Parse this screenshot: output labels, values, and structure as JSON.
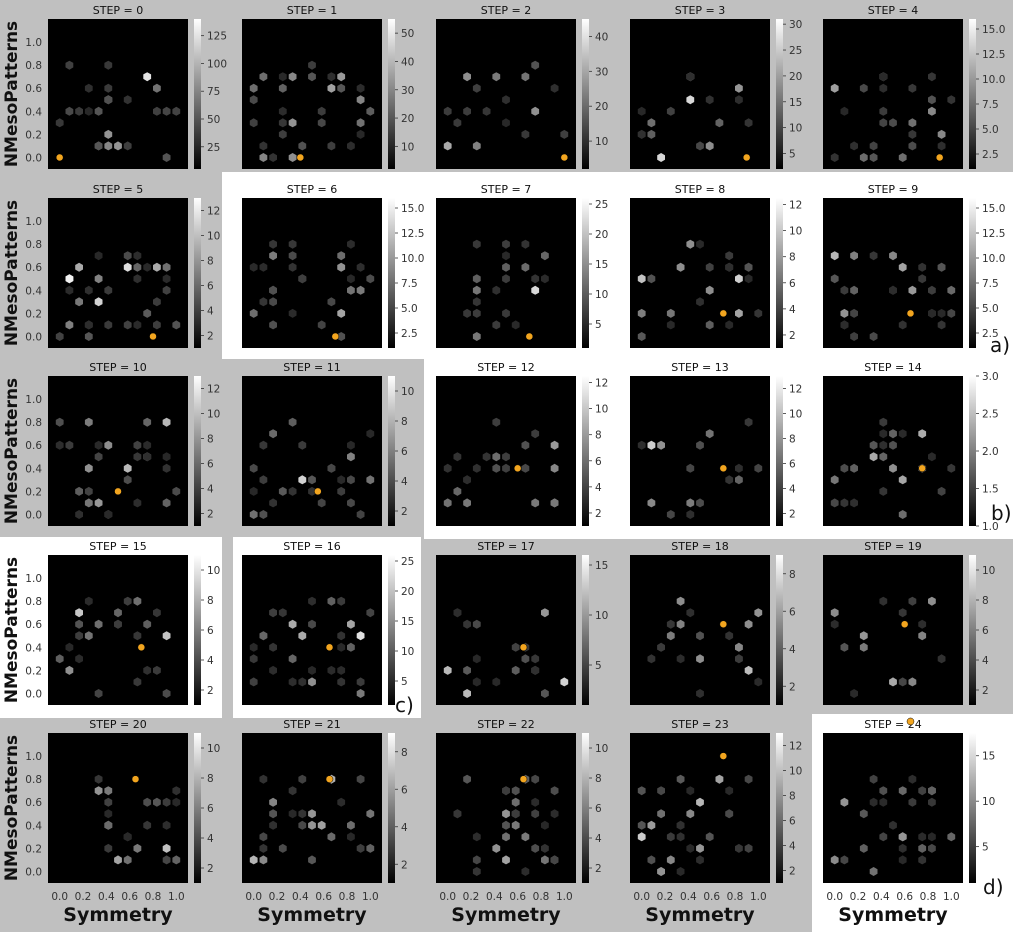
{
  "figure": {
    "xlabel": "Symmetry",
    "ylabel": "NMesoPatterns",
    "x_ticks": [
      "0.0",
      "0.2",
      "0.4",
      "0.6",
      "0.8",
      "1.0"
    ],
    "y_ticks": [
      "0.0",
      "0.2",
      "0.4",
      "0.6",
      "0.8",
      "1.0"
    ],
    "panel_labels": [
      "a)",
      "b)",
      "c)",
      "d)"
    ],
    "colors": {
      "background": "#c0c0c0",
      "highlight": "#ffffff",
      "plot_bg": "#000000",
      "marker": "#f2a51f"
    }
  },
  "chart_data": [
    {
      "type": "heatmap",
      "title": "STEP = 0",
      "colorbar_ticks": [
        "25",
        "50",
        "75",
        "100",
        "125"
      ],
      "colorbar_range": [
        5,
        140
      ],
      "marker": [
        0.0,
        0.0
      ],
      "xlim": [
        -0.1,
        1.1
      ],
      "ylim": [
        -0.1,
        1.2
      ]
    },
    {
      "type": "heatmap",
      "title": "STEP = 1",
      "colorbar_ticks": [
        "10",
        "20",
        "30",
        "40",
        "50"
      ],
      "colorbar_range": [
        2,
        55
      ],
      "marker": [
        0.4,
        0.0
      ],
      "xlim": [
        -0.1,
        1.1
      ],
      "ylim": [
        -0.1,
        1.2
      ]
    },
    {
      "type": "heatmap",
      "title": "STEP = 2",
      "colorbar_ticks": [
        "10",
        "20",
        "30",
        "40"
      ],
      "colorbar_range": [
        2,
        45
      ],
      "marker": [
        1.0,
        0.0
      ],
      "xlim": [
        -0.1,
        1.1
      ],
      "ylim": [
        -0.1,
        1.2
      ]
    },
    {
      "type": "heatmap",
      "title": "STEP = 3",
      "colorbar_ticks": [
        "5",
        "10",
        "15",
        "20",
        "25",
        "30"
      ],
      "colorbar_range": [
        2,
        31
      ],
      "marker": [
        0.9,
        0.0
      ],
      "xlim": [
        -0.1,
        1.1
      ],
      "ylim": [
        -0.1,
        1.2
      ]
    },
    {
      "type": "heatmap",
      "title": "STEP = 4",
      "colorbar_ticks": [
        "2.5",
        "5.0",
        "7.5",
        "10.0",
        "12.5",
        "15.0"
      ],
      "colorbar_range": [
        1,
        16
      ],
      "marker": [
        0.9,
        0.0
      ],
      "xlim": [
        -0.1,
        1.1
      ],
      "ylim": [
        -0.1,
        1.2
      ]
    },
    {
      "type": "heatmap",
      "title": "STEP = 5",
      "colorbar_ticks": [
        "2",
        "4",
        "6",
        "8",
        "10",
        "12"
      ],
      "colorbar_range": [
        1,
        13
      ],
      "marker": [
        0.8,
        0.0
      ],
      "xlim": [
        -0.1,
        1.1
      ],
      "ylim": [
        -0.1,
        1.2
      ]
    },
    {
      "type": "heatmap",
      "title": "STEP = 6",
      "colorbar_ticks": [
        "2.5",
        "5.0",
        "7.5",
        "10.0",
        "12.5",
        "15.0"
      ],
      "colorbar_range": [
        1,
        16
      ],
      "marker": [
        0.7,
        0.0
      ],
      "xlim": [
        -0.1,
        1.1
      ],
      "ylim": [
        -0.1,
        1.2
      ]
    },
    {
      "type": "heatmap",
      "title": "STEP = 7",
      "colorbar_ticks": [
        "5",
        "10",
        "15",
        "20",
        "25"
      ],
      "colorbar_range": [
        1,
        26
      ],
      "marker": [
        0.7,
        0.0
      ],
      "xlim": [
        -0.1,
        1.1
      ],
      "ylim": [
        -0.1,
        1.2
      ]
    },
    {
      "type": "heatmap",
      "title": "STEP = 8",
      "colorbar_ticks": [
        "2",
        "4",
        "6",
        "8",
        "10",
        "12"
      ],
      "colorbar_range": [
        1,
        12.5
      ],
      "marker": [
        0.7,
        0.2
      ],
      "xlim": [
        -0.1,
        1.1
      ],
      "ylim": [
        -0.1,
        1.2
      ]
    },
    {
      "type": "heatmap",
      "title": "STEP = 9",
      "colorbar_ticks": [
        "2.5",
        "5.0",
        "7.5",
        "10.0",
        "12.5",
        "15.0"
      ],
      "colorbar_range": [
        1,
        16
      ],
      "marker": [
        0.65,
        0.2
      ],
      "xlim": [
        -0.1,
        1.1
      ],
      "ylim": [
        -0.1,
        1.2
      ]
    },
    {
      "type": "heatmap",
      "title": "STEP = 10",
      "colorbar_ticks": [
        "2",
        "4",
        "6",
        "8",
        "10",
        "12"
      ],
      "colorbar_range": [
        1,
        13
      ],
      "marker": [
        0.5,
        0.2
      ],
      "xlim": [
        -0.1,
        1.1
      ],
      "ylim": [
        -0.1,
        1.2
      ]
    },
    {
      "type": "heatmap",
      "title": "STEP = 11",
      "colorbar_ticks": [
        "2",
        "4",
        "6",
        "8",
        "10"
      ],
      "colorbar_range": [
        1,
        11
      ],
      "marker": [
        0.55,
        0.2
      ],
      "xlim": [
        -0.1,
        1.1
      ],
      "ylim": [
        -0.1,
        1.2
      ]
    },
    {
      "type": "heatmap",
      "title": "STEP = 12",
      "colorbar_ticks": [
        "2",
        "4",
        "6",
        "8",
        "10",
        "12"
      ],
      "colorbar_range": [
        1,
        12.5
      ],
      "marker": [
        0.6,
        0.4
      ],
      "xlim": [
        -0.1,
        1.1
      ],
      "ylim": [
        -0.1,
        1.2
      ]
    },
    {
      "type": "heatmap",
      "title": "STEP = 13",
      "colorbar_ticks": [
        "2",
        "4",
        "6",
        "8",
        "10",
        "12"
      ],
      "colorbar_range": [
        1,
        13
      ],
      "marker": [
        0.7,
        0.4
      ],
      "xlim": [
        -0.1,
        1.1
      ],
      "ylim": [
        -0.1,
        1.2
      ]
    },
    {
      "type": "heatmap",
      "title": "STEP = 14",
      "colorbar_ticks": [
        "1.0",
        "1.5",
        "2.0",
        "2.5",
        "3.0"
      ],
      "colorbar_range": [
        1,
        3
      ],
      "marker": [
        0.75,
        0.4
      ],
      "xlim": [
        -0.1,
        1.1
      ],
      "ylim": [
        -0.1,
        1.2
      ]
    },
    {
      "type": "heatmap",
      "title": "STEP = 15",
      "colorbar_ticks": [
        "2",
        "4",
        "6",
        "8",
        "10"
      ],
      "colorbar_range": [
        1,
        11
      ],
      "marker": [
        0.7,
        0.4
      ],
      "xlim": [
        -0.1,
        1.1
      ],
      "ylim": [
        -0.1,
        1.2
      ]
    },
    {
      "type": "heatmap",
      "title": "STEP = 16",
      "colorbar_ticks": [
        "5",
        "10",
        "15",
        "20",
        "25"
      ],
      "colorbar_range": [
        1,
        26
      ],
      "marker": [
        0.65,
        0.4
      ],
      "xlim": [
        -0.1,
        1.1
      ],
      "ylim": [
        -0.1,
        1.2
      ]
    },
    {
      "type": "heatmap",
      "title": "STEP = 17",
      "colorbar_ticks": [
        "5",
        "10",
        "15"
      ],
      "colorbar_range": [
        1,
        16
      ],
      "marker": [
        0.65,
        0.4
      ],
      "xlim": [
        -0.1,
        1.1
      ],
      "ylim": [
        -0.1,
        1.2
      ]
    },
    {
      "type": "heatmap",
      "title": "STEP = 18",
      "colorbar_ticks": [
        "2",
        "4",
        "6",
        "8"
      ],
      "colorbar_range": [
        1,
        9
      ],
      "marker": [
        0.7,
        0.6
      ],
      "xlim": [
        -0.1,
        1.1
      ],
      "ylim": [
        -0.1,
        1.2
      ]
    },
    {
      "type": "heatmap",
      "title": "STEP = 19",
      "colorbar_ticks": [
        "2",
        "4",
        "6",
        "8",
        "10"
      ],
      "colorbar_range": [
        1,
        11
      ],
      "marker": [
        0.6,
        0.6
      ],
      "xlim": [
        -0.1,
        1.1
      ],
      "ylim": [
        -0.1,
        1.2
      ]
    },
    {
      "type": "heatmap",
      "title": "STEP = 20",
      "colorbar_ticks": [
        "2",
        "4",
        "6",
        "8",
        "10"
      ],
      "colorbar_range": [
        1,
        11
      ],
      "marker": [
        0.65,
        0.8
      ],
      "xlim": [
        -0.1,
        1.1
      ],
      "ylim": [
        -0.1,
        1.2
      ]
    },
    {
      "type": "heatmap",
      "title": "STEP = 21",
      "colorbar_ticks": [
        "2",
        "4",
        "6",
        "8"
      ],
      "colorbar_range": [
        1,
        9
      ],
      "marker": [
        0.65,
        0.8
      ],
      "xlim": [
        -0.1,
        1.1
      ],
      "ylim": [
        -0.1,
        1.2
      ]
    },
    {
      "type": "heatmap",
      "title": "STEP = 22",
      "colorbar_ticks": [
        "2",
        "4",
        "6",
        "8",
        "10"
      ],
      "colorbar_range": [
        1,
        11
      ],
      "marker": [
        0.65,
        0.8
      ],
      "xlim": [
        -0.1,
        1.1
      ],
      "ylim": [
        -0.1,
        1.2
      ]
    },
    {
      "type": "heatmap",
      "title": "STEP = 23",
      "colorbar_ticks": [
        "2",
        "4",
        "6",
        "8",
        "10",
        "12"
      ],
      "colorbar_range": [
        1,
        13
      ],
      "marker": [
        0.7,
        1.0
      ],
      "xlim": [
        -0.1,
        1.1
      ],
      "ylim": [
        -0.1,
        1.2
      ]
    },
    {
      "type": "heatmap",
      "title": "STEP = 24",
      "colorbar_ticks": [
        "5",
        "10",
        "15"
      ],
      "colorbar_range": [
        1,
        17.5
      ],
      "marker": [
        0.65,
        1.3
      ],
      "xlim": [
        -0.1,
        1.1
      ],
      "ylim": [
        -0.1,
        1.2
      ]
    }
  ]
}
